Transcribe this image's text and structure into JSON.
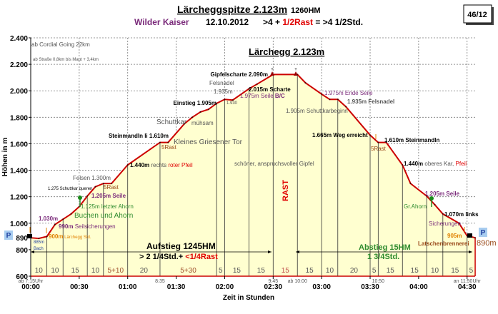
{
  "header": {
    "title": "Lärcheggspitze 2.123m",
    "hm": "1260HM",
    "region": "Wilder Kaiser",
    "date": "12.10.2012",
    "duration_a": ">4 + ",
    "duration_rast": "1/2Rast",
    "duration_b": " = >4 1/2Std.",
    "badge": "46/12"
  },
  "chart_data": {
    "type": "area",
    "title": "Lärchegg 2.123m",
    "xlabel": "Zeit in Stunden",
    "ylabel": "Höhen in m",
    "xlim_minutes": [
      0,
      275
    ],
    "ylim": [
      600,
      2400
    ],
    "grid": true,
    "y_ticks": [
      "600",
      "800",
      "890",
      "1.000",
      "1.200",
      "1.400",
      "1.600",
      "1.800",
      "2.000",
      "2.200",
      "2.400"
    ],
    "x_ticks": [
      "00:00",
      "00:30",
      "01:00",
      "01:30",
      "02:00",
      "02:30",
      "03:00",
      "03:30",
      "04:00",
      "04:30"
    ],
    "profile_minutes": [
      0,
      5,
      10,
      15,
      20,
      25,
      30,
      35,
      40,
      45,
      50,
      60,
      80,
      85,
      95,
      100,
      105,
      110,
      115,
      120,
      125,
      135,
      140,
      150,
      165,
      170,
      180,
      185,
      190,
      195,
      210,
      215,
      220,
      230,
      235,
      245,
      250,
      255,
      265,
      270,
      275
    ],
    "profile_elevation": [
      890,
      885,
      900,
      990,
      1030,
      1070,
      1125,
      1205,
      1275,
      1300,
      1300,
      1440,
      1610,
      1610,
      1750,
      1800,
      1840,
      1860,
      1905,
      1935,
      1930,
      2015,
      2050,
      2123,
      2123,
      2060,
      1975,
      1935,
      1935,
      1880,
      1665,
      1610,
      1610,
      1440,
      1300,
      1205,
      1140,
      1070,
      1000,
      905,
      890
    ],
    "segments": [
      {
        "label": "10",
        "start": 0,
        "end": 10,
        "color": "#555555"
      },
      {
        "label": "10",
        "start": 10,
        "end": 20,
        "color": "#555555"
      },
      {
        "label": "15",
        "start": 20,
        "end": 35,
        "color": "#555555"
      },
      {
        "label": "10",
        "start": 35,
        "end": 45,
        "color": "#555555"
      },
      {
        "label": "5+10",
        "start": 45,
        "end": 60,
        "color": "#a0522d"
      },
      {
        "label": "20",
        "start": 60,
        "end": 80,
        "color": "#555555"
      },
      {
        "label": "5+30",
        "start": 80,
        "end": 115,
        "color": "#a0522d"
      },
      {
        "label": "5",
        "start": 115,
        "end": 120,
        "color": "#555555"
      },
      {
        "label": "15",
        "start": 120,
        "end": 135,
        "color": "#555555"
      },
      {
        "label": "15",
        "start": 135,
        "end": 150,
        "color": "#555555"
      },
      {
        "label": "15",
        "start": 150,
        "end": 165,
        "color": "#c0504d"
      },
      {
        "label": "15",
        "start": 165,
        "end": 180,
        "color": "#555555"
      },
      {
        "label": "10",
        "start": 180,
        "end": 190,
        "color": "#555555"
      },
      {
        "label": "20",
        "start": 190,
        "end": 210,
        "color": "#555555"
      },
      {
        "label": "5",
        "start": 210,
        "end": 215,
        "color": "#555555"
      },
      {
        "label": "15",
        "start": 215,
        "end": 230,
        "color": "#555555"
      },
      {
        "label": "15",
        "start": 230,
        "end": 245,
        "color": "#555555"
      },
      {
        "label": "10",
        "start": 245,
        "end": 255,
        "color": "#555555"
      },
      {
        "label": "15",
        "start": 255,
        "end": 270,
        "color": "#555555"
      },
      {
        "label": "5",
        "start": 270,
        "end": 275,
        "color": "#555555"
      }
    ],
    "clock_labels": [
      {
        "text": "ab 7:15Uhr",
        "minute": 0
      },
      {
        "text": "8:35",
        "minute": 80
      },
      {
        "text": "9:45",
        "minute": 150
      },
      {
        "text": "ab 10:00",
        "minute": 165
      },
      {
        "text": "10:50",
        "minute": 215
      },
      {
        "text": "an 11:50Uhr",
        "minute": 270
      }
    ],
    "colors": {
      "profile": "#cc0000",
      "fill": "#ffffd0",
      "axis": "#cc0000"
    }
  },
  "annotations": {
    "cordial": "ab Cordial Going 22km",
    "strasse": "ab Straße 0,8km bis Maut + 3,4km",
    "gipfelscharte": "Gipfelscharte 2.090m",
    "felsnadel": "Felsnadel",
    "e1935": "1.935m",
    "einstieg": "Einstieg 1.905m",
    "e1930": "1.930",
    "scharte": "2.015m Scharte",
    "seile1975": "1.975m Seile ",
    "bc": "B/C",
    "schuttkar": "Schuttkar",
    "muehsam": "mühsam",
    "griesener": "Kleines Griesener Tor",
    "steinmandl_up": "Steinmandln li 1.610m",
    "rast5a": "5Rast",
    "e1440": "1.440m",
    "rechts": " rechts ",
    "roterpfeil": "roter Pfeil",
    "felsen": "Felsen 1.300m",
    "rast5b": "5Rast",
    "schuttkarqueren": "1.275 Schuttkar queren",
    "seile1205a": "1.205m Seile",
    "ahorn1125": "1.125m letzter Ahorn",
    "buchen": "Buchen und Ahorn",
    "e1030": "1.030m",
    "e990": "990m",
    "seilsich": " Seilsicherungen",
    "e900": "900m",
    "laerchegg_std": " Lärchegg Std.",
    "e885": "885m",
    "bach": "Bach",
    "aufstieg": "Aufstieg 1245HM",
    "aufstieg_time": "> 2 1/4Std.+ ",
    "aufstieg_rast": "<1/4Rast",
    "rast": "RAST",
    "gipfel": "schöner, anspruchsvoller Gipfel",
    "endeseile": "1.975m Ende Seile",
    "felsnadel1935": "1.935m Felsnadel",
    "schuttkarbeginn": "1.905m Schuttkarbeginn",
    "weg": "1.665m Weg erreicht",
    "steinmandl_down": "1.610m Steinmandln",
    "rast5c": "5Rast",
    "e1440b": "1.440m",
    "oberes": " oberes Kar, ",
    "pfeil": "Pfeil",
    "seile1205b": "1.205m Seile",
    "grahorn": "Gr.Ahorn",
    "links": "1.070m links",
    "sicherungen": "Sicherungen",
    "e905": "905m",
    "latschen": "Latschenbrennerei",
    "e890": "890m",
    "abstieg": "Abstieg 15HM",
    "abstieg_time": "1 3/4Std.",
    "parking": "P",
    "peak_marker": "+"
  }
}
